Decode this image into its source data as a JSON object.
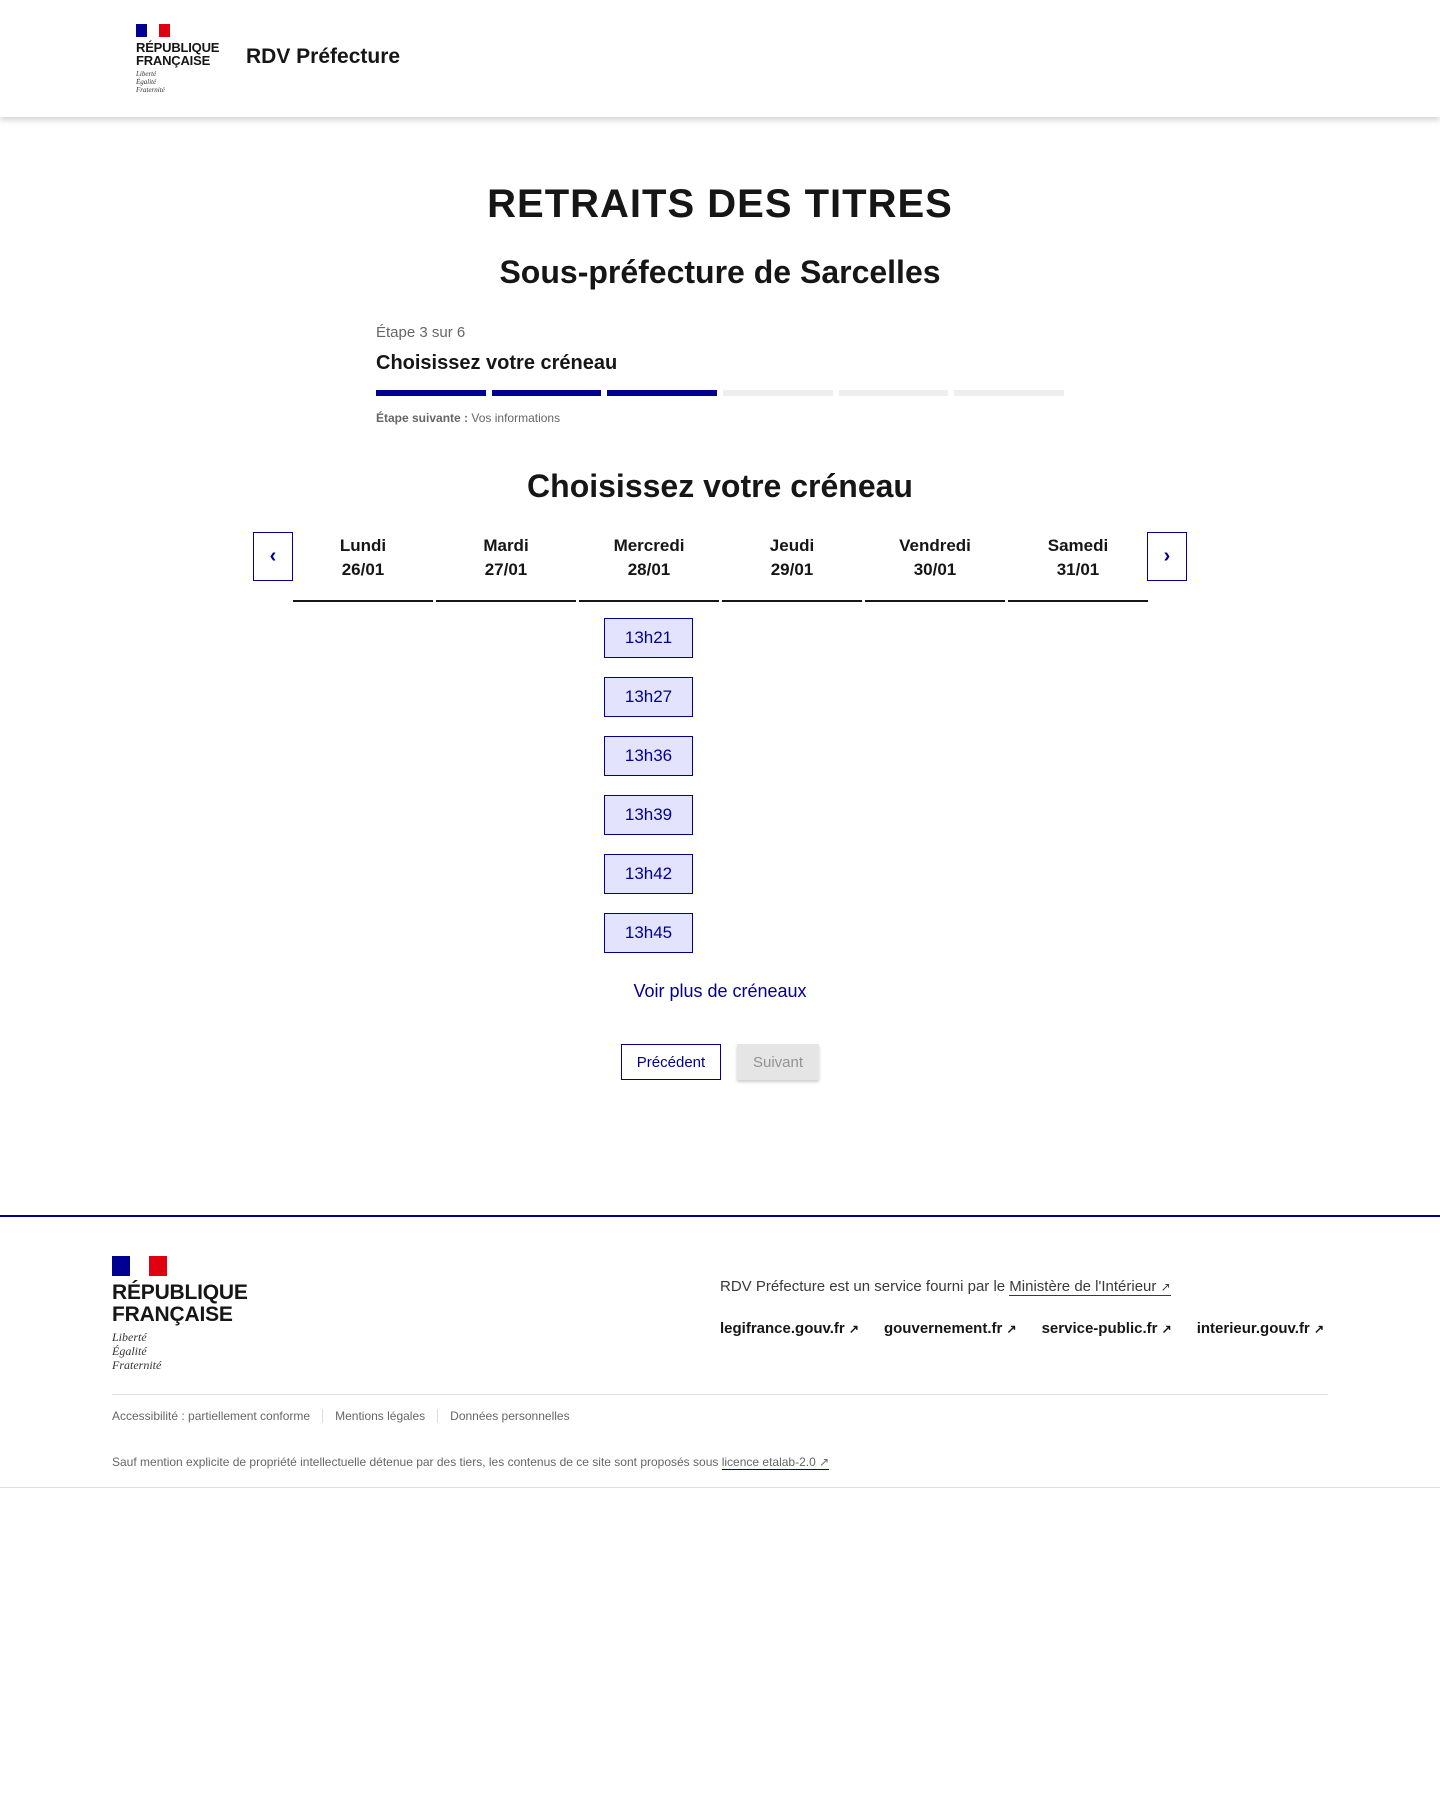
{
  "header": {
    "logo_text": [
      "RÉPUBLIQUE",
      "FRANÇAISE"
    ],
    "logo_motto": [
      "Liberté",
      "Égalité",
      "Fraternité"
    ],
    "site_title": "RDV Préfecture"
  },
  "page": {
    "title": "RETRAITS DES TITRES",
    "subtitle": "Sous-préfecture de Sarcelles"
  },
  "stepper": {
    "state": "Étape 3 sur 6",
    "title": "Choisissez votre créneau",
    "current_step": 3,
    "total_steps": 6,
    "next_label": "Étape suivante :",
    "next_value": "Vos informations"
  },
  "calendar": {
    "heading": "Choisissez votre créneau",
    "days": [
      {
        "name": "Lundi",
        "date": "26/01"
      },
      {
        "name": "Mardi",
        "date": "27/01"
      },
      {
        "name": "Mercredi",
        "date": "28/01"
      },
      {
        "name": "Jeudi",
        "date": "29/01"
      },
      {
        "name": "Vendredi",
        "date": "30/01"
      },
      {
        "name": "Samedi",
        "date": "31/01"
      }
    ],
    "slots": [
      "13h21",
      "13h27",
      "13h36",
      "13h39",
      "13h42",
      "13h45"
    ],
    "more": "Voir plus de créneaux"
  },
  "buttons": {
    "previous": "Précédent",
    "next": "Suivant"
  },
  "footer": {
    "service_text": "RDV Préfecture est un service fourni par le ",
    "ministry_link": "Ministère de l'Intérieur",
    "links": [
      "legifrance.gouv.fr",
      "gouvernement.fr",
      "service-public.fr",
      "interieur.gouv.fr"
    ],
    "bottom_links": [
      "Accessibilité : partiellement conforme",
      "Mentions légales",
      "Données personnelles"
    ],
    "license_text": "Sauf mention explicite de propriété intellectuelle détenue par des tiers, les contenus de ce site sont proposés sous ",
    "license_link": "licence etalab-2.0"
  },
  "colors": {
    "primary": "#000091",
    "slot_bg": "#e3e3fd",
    "flag_red": "#e1000f"
  }
}
